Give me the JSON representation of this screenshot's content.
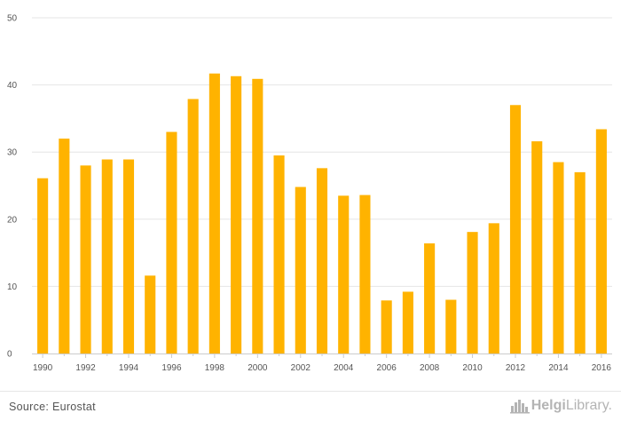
{
  "chart_data": {
    "type": "bar",
    "categories": [
      "1990",
      "1991",
      "1992",
      "1993",
      "1994",
      "1995",
      "1996",
      "1997",
      "1998",
      "1999",
      "2000",
      "2001",
      "2002",
      "2003",
      "2004",
      "2005",
      "2006",
      "2007",
      "2008",
      "2009",
      "2010",
      "2011",
      "2012",
      "2013",
      "2014",
      "2015",
      "2016"
    ],
    "values": [
      26.1,
      32.0,
      28.0,
      28.9,
      28.9,
      11.6,
      33.0,
      37.9,
      41.7,
      41.3,
      40.9,
      29.5,
      24.8,
      27.6,
      23.5,
      23.6,
      7.9,
      9.2,
      16.4,
      8.0,
      18.1,
      19.4,
      37.0,
      31.6,
      28.5,
      27.0,
      33.4
    ],
    "x_tick_labels": [
      "1990",
      "1992",
      "1994",
      "1996",
      "1998",
      "2000",
      "2002",
      "2004",
      "2006",
      "2008",
      "2010",
      "2012",
      "2014",
      "2016"
    ],
    "y_ticks": [
      0,
      10,
      20,
      30,
      40,
      50
    ],
    "ylim": [
      0,
      50
    ],
    "title": "",
    "xlabel": "",
    "ylabel": "",
    "grid": true,
    "bar_color": "#FFB300",
    "grid_color": "#e6e6e6"
  },
  "footer": {
    "source": "Source: Eurostat",
    "brand_main": "Helgi",
    "brand_sub": "Library."
  }
}
